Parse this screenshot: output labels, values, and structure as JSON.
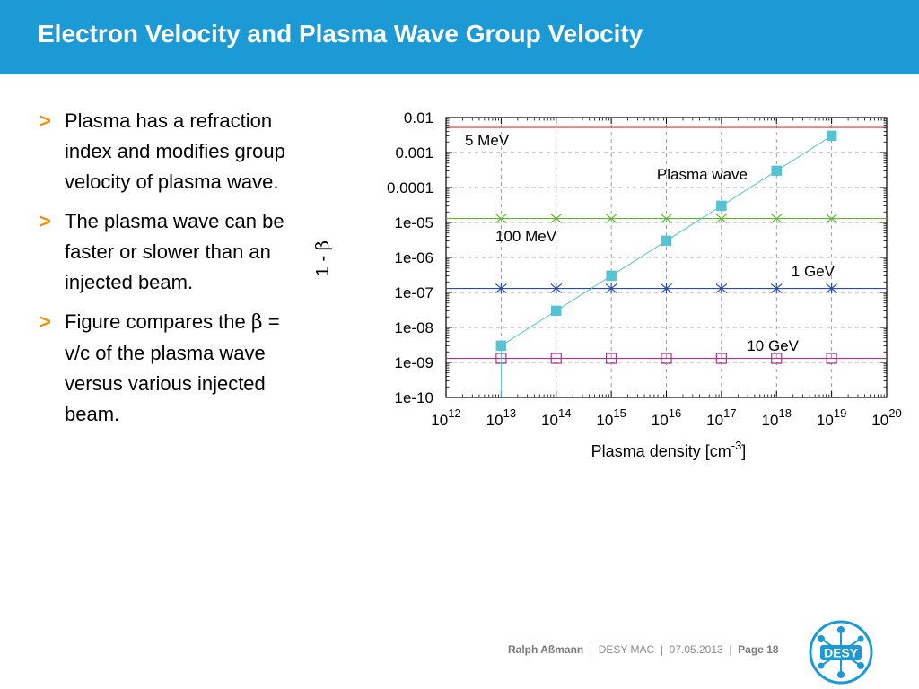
{
  "slide": {
    "title": "Electron Velocity and Plasma Wave Group Velocity"
  },
  "bullets": [
    {
      "marker": ">",
      "text": "Plasma has a refraction index and modifies group velocity of plasma wave."
    },
    {
      "marker": ">",
      "text": "The plasma wave can be faster or slower than an injected beam."
    },
    {
      "marker": ">",
      "text_pre": "Figure compares the ",
      "beta": "β",
      "text_post": " = v/c of the plasma wave versus various injected beam."
    }
  ],
  "chart_data": {
    "type": "scatter",
    "xscale": "log",
    "yscale": "log",
    "xlim": [
      1000000000000.0,
      1e+20
    ],
    "ylim": [
      1e-10,
      0.01
    ],
    "xlabel": "Plasma density [cm-3]",
    "xlabel_main": "Plasma density [cm",
    "xlabel_sup": "-3",
    "xlabel_close": "]",
    "ylabel": "1 - β",
    "ylabel_main": "1 - ",
    "ylabel_beta": "β",
    "grid": true,
    "xtick_base": "10",
    "xtick_exponents": [
      "12",
      "13",
      "14",
      "15",
      "16",
      "17",
      "18",
      "19",
      "20"
    ],
    "ytick_labels": [
      "0.01",
      "0.001",
      "0.0001",
      "1e-05",
      "1e-06",
      "1e-07",
      "1e-08",
      "1e-09",
      "1e-10"
    ],
    "series": [
      {
        "name": "5 MeV",
        "color": "#e8332a",
        "marker": "none",
        "x": [
          1000000000000.0,
          1e+20
        ],
        "y": [
          0.0052,
          0.0052
        ]
      },
      {
        "name": "100 MeV",
        "color": "#5cb82e",
        "marker": "x",
        "x": [
          10000000000000.0,
          100000000000000.0,
          1000000000000000.0,
          1e+16,
          1e+17,
          1e+18,
          1e+19
        ],
        "y": [
          1.3e-05,
          1.3e-05,
          1.3e-05,
          1.3e-05,
          1.3e-05,
          1.3e-05,
          1.3e-05
        ]
      },
      {
        "name": "1 GeV",
        "color": "#2a4cb0",
        "marker": "asterisk",
        "x": [
          10000000000000.0,
          100000000000000.0,
          1000000000000000.0,
          1e+16,
          1e+17,
          1e+18,
          1e+19
        ],
        "y": [
          1.3e-07,
          1.3e-07,
          1.3e-07,
          1.3e-07,
          1.3e-07,
          1.3e-07,
          1.3e-07
        ]
      },
      {
        "name": "10 GeV",
        "color": "#b3318f",
        "marker": "open-square",
        "x": [
          10000000000000.0,
          100000000000000.0,
          1000000000000000.0,
          1e+16,
          1e+17,
          1e+18,
          1e+19
        ],
        "y": [
          1.3e-09,
          1.3e-09,
          1.3e-09,
          1.3e-09,
          1.3e-09,
          1.3e-09,
          1.3e-09
        ]
      },
      {
        "name": "Plasma wave",
        "color": "#55c3d3",
        "marker": "filled-square",
        "x": [
          10000000000000.0,
          100000000000000.0,
          1000000000000000.0,
          1e+16,
          1e+17,
          1e+18,
          1e+19
        ],
        "y": [
          3e-09,
          3e-08,
          3e-07,
          3e-06,
          3e-05,
          0.0003,
          0.003
        ]
      }
    ]
  },
  "footer": {
    "author": "Ralph Aßmann",
    "sep1": "|",
    "event": "DESY MAC",
    "sep2": "|",
    "date": "07.05.2013",
    "sep3": "|",
    "page": "Page 18"
  },
  "logo": {
    "text": "DESY"
  },
  "colors": {
    "title_bar": "#1c9ad6",
    "bullet_marker": "#f39200",
    "logo_blue": "#1c9ad6"
  }
}
